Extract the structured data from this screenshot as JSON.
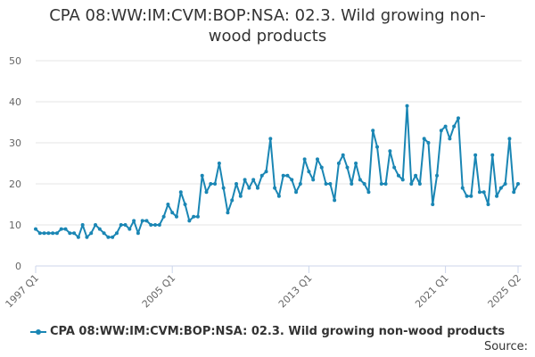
{
  "title_line1": "CPA 08:WW:IM:CVM:BOP:NSA: 02.3. Wild growing non-",
  "title_line2": "wood products",
  "source_label": "Source:",
  "colors": {
    "series": "#1a86b4",
    "grid": "#e6e6e6",
    "axis": "#ccd6eb"
  },
  "chart_data": {
    "type": "line",
    "title": "CPA 08:WW:IM:CVM:BOP:NSA: 02.3. Wild growing non-wood products",
    "xlabel": "",
    "ylabel": "",
    "ylim": [
      0,
      50
    ],
    "yticks": [
      0,
      10,
      20,
      30,
      40,
      50
    ],
    "x_tick_labels": [
      "1997 Q1",
      "2005 Q1",
      "2013 Q1",
      "2021 Q1",
      "2025 Q2"
    ],
    "x_tick_index": [
      0,
      32,
      64,
      96,
      113
    ],
    "grid": true,
    "legend_position": "bottom",
    "series": [
      {
        "name": "CPA 08:WW:IM:CVM:BOP:NSA: 02.3. Wild growing non-wood products",
        "start": "1997 Q1",
        "end": "2025 Q2",
        "values": [
          9,
          8,
          8,
          8,
          8,
          8,
          9,
          9,
          8,
          8,
          7,
          10,
          7,
          8,
          10,
          9,
          8,
          7,
          7,
          8,
          10,
          10,
          9,
          11,
          8,
          11,
          11,
          10,
          10,
          10,
          12,
          15,
          13,
          12,
          18,
          15,
          11,
          12,
          12,
          22,
          18,
          20,
          20,
          25,
          19,
          13,
          16,
          20,
          17,
          21,
          19,
          21,
          19,
          22,
          23,
          31,
          19,
          17,
          22,
          22,
          21,
          18,
          20,
          26,
          23,
          21,
          26,
          24,
          20,
          20,
          16,
          25,
          27,
          24,
          20,
          25,
          21,
          20,
          18,
          33,
          29,
          20,
          20,
          28,
          24,
          22,
          21,
          39,
          20,
          22,
          20,
          31,
          30,
          15,
          22,
          33,
          34,
          31,
          34,
          36,
          19,
          17,
          17,
          27,
          18,
          18,
          15,
          27,
          17,
          19,
          20,
          31,
          18,
          20
        ]
      }
    ]
  }
}
